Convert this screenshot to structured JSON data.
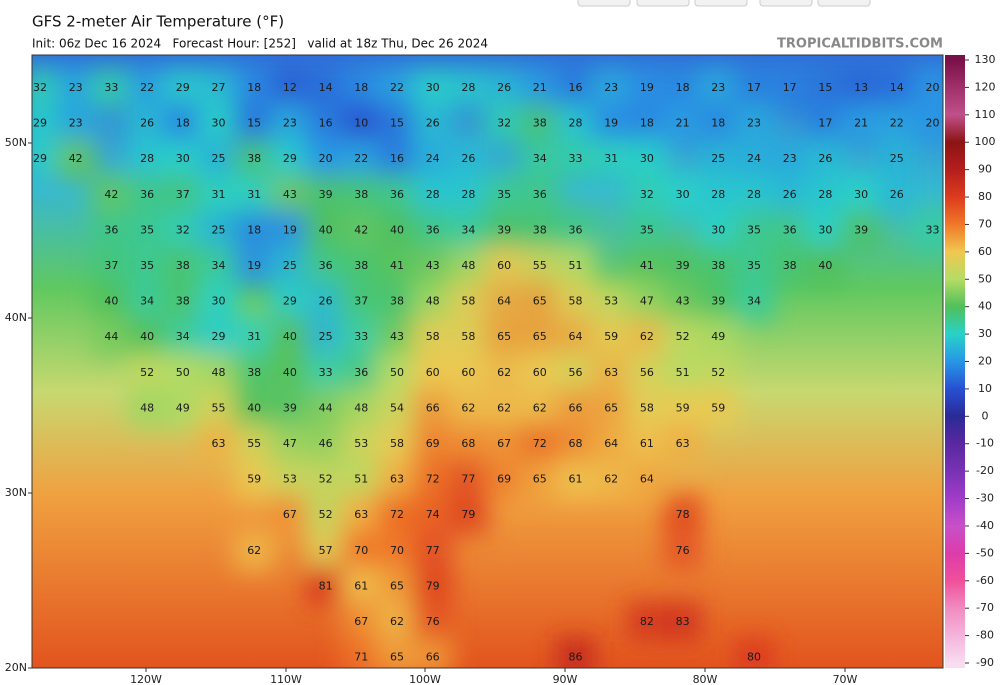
{
  "header": {
    "title": "GFS 2-meter Air Temperature (°F)",
    "init": "Init: 06z Dec 16 2024   Forecast Hour: [252]   valid at 18z Thu, Dec 26 2024",
    "source": "TROPICALTIDBITS.COM"
  },
  "lat_labels": [
    "50N",
    "40N",
    "30N",
    "20N"
  ],
  "lon_labels": [
    "120W",
    "110W",
    "100W",
    "90W",
    "80W",
    "70W"
  ],
  "colorbar": {
    "ticks": [
      130,
      120,
      110,
      100,
      90,
      80,
      70,
      60,
      50,
      40,
      30,
      20,
      10,
      0,
      -10,
      -20,
      -30,
      -40,
      -50,
      -60,
      -70,
      -80,
      -90
    ],
    "colors": [
      "#7a1048",
      "#a0306a",
      "#c0508a",
      "#8c1414",
      "#b41e1e",
      "#dc3c1e",
      "#f07828",
      "#f0c850",
      "#b4dc64",
      "#50c05a",
      "#28d2c8",
      "#2896e6",
      "#2850d2",
      "#2a2a96",
      "#5a28a0",
      "#7832b4",
      "#a03cc8",
      "#c850c8",
      "#dc3caa",
      "#f0509a",
      "#f08cc0",
      "#f5b4dc",
      "#f8dcf0"
    ]
  },
  "stations": [
    [
      32,
      23,
      33,
      22,
      29,
      27,
      18,
      12,
      14,
      18,
      22,
      30,
      28,
      26,
      21,
      16,
      23,
      19,
      18,
      23,
      17,
      17,
      15,
      13,
      14,
      20
    ],
    [
      29,
      23,
      null,
      26,
      18,
      30,
      15,
      23,
      16,
      10,
      15,
      26,
      null,
      32,
      38,
      28,
      19,
      18,
      21,
      18,
      23,
      null,
      17,
      21,
      22,
      20
    ],
    [
      29,
      42,
      null,
      28,
      30,
      25,
      38,
      29,
      20,
      22,
      16,
      24,
      26,
      null,
      34,
      33,
      31,
      30,
      null,
      25,
      24,
      23,
      26,
      null,
      25,
      null
    ],
    [
      null,
      null,
      42,
      36,
      37,
      31,
      31,
      43,
      39,
      38,
      36,
      28,
      28,
      35,
      36,
      null,
      null,
      32,
      30,
      28,
      28,
      26,
      28,
      30,
      26,
      null
    ],
    [
      null,
      null,
      36,
      35,
      32,
      25,
      18,
      19,
      40,
      42,
      40,
      36,
      34,
      39,
      38,
      36,
      null,
      35,
      null,
      30,
      35,
      36,
      30,
      39,
      null,
      33
    ],
    [
      null,
      null,
      37,
      35,
      38,
      34,
      19,
      25,
      36,
      38,
      41,
      43,
      48,
      60,
      55,
      51,
      null,
      41,
      39,
      38,
      35,
      38,
      40,
      null,
      null,
      null
    ],
    [
      null,
      null,
      40,
      34,
      38,
      30,
      null,
      29,
      26,
      37,
      38,
      48,
      58,
      64,
      65,
      58,
      53,
      47,
      43,
      39,
      34,
      null,
      null,
      null,
      null,
      null
    ],
    [
      null,
      null,
      44,
      40,
      34,
      29,
      31,
      40,
      25,
      33,
      43,
      58,
      58,
      65,
      65,
      64,
      59,
      62,
      52,
      49,
      null,
      null,
      null,
      null,
      null,
      null
    ],
    [
      null,
      null,
      null,
      52,
      50,
      48,
      38,
      40,
      33,
      36,
      50,
      60,
      60,
      62,
      60,
      56,
      63,
      56,
      51,
      52,
      null,
      null,
      null,
      null,
      null,
      null
    ],
    [
      null,
      null,
      null,
      48,
      49,
      55,
      40,
      39,
      44,
      48,
      54,
      66,
      62,
      62,
      62,
      66,
      65,
      58,
      59,
      59,
      null,
      null,
      null,
      null,
      null,
      null
    ],
    [
      null,
      null,
      null,
      null,
      null,
      63,
      55,
      47,
      46,
      53,
      58,
      69,
      68,
      67,
      72,
      68,
      64,
      61,
      63,
      null,
      null,
      null,
      null,
      null,
      null,
      null
    ],
    [
      null,
      null,
      null,
      null,
      null,
      null,
      59,
      53,
      52,
      51,
      63,
      72,
      77,
      69,
      65,
      61,
      62,
      64,
      null,
      null,
      null,
      null,
      null,
      null,
      null,
      null
    ],
    [
      null,
      null,
      null,
      null,
      null,
      null,
      null,
      67,
      52,
      63,
      72,
      74,
      79,
      null,
      null,
      null,
      null,
      null,
      78,
      null,
      null,
      null,
      null,
      null,
      null,
      null
    ],
    [
      null,
      null,
      null,
      null,
      null,
      null,
      62,
      null,
      57,
      70,
      70,
      77,
      null,
      null,
      null,
      null,
      null,
      null,
      76,
      null,
      null,
      null,
      null,
      null,
      null,
      null
    ],
    [
      null,
      null,
      null,
      null,
      null,
      null,
      null,
      null,
      81,
      61,
      65,
      79,
      null,
      null,
      null,
      null,
      null,
      null,
      null,
      null,
      null,
      null,
      null,
      null,
      null,
      null
    ],
    [
      null,
      null,
      null,
      null,
      null,
      null,
      null,
      null,
      null,
      67,
      62,
      76,
      null,
      null,
      null,
      null,
      null,
      82,
      83,
      null,
      null,
      null,
      null,
      null,
      null,
      null
    ],
    [
      null,
      null,
      null,
      null,
      null,
      null,
      null,
      null,
      null,
      71,
      65,
      66,
      null,
      null,
      null,
      86,
      null,
      null,
      null,
      null,
      80,
      null,
      null,
      null,
      null,
      null
    ]
  ]
}
